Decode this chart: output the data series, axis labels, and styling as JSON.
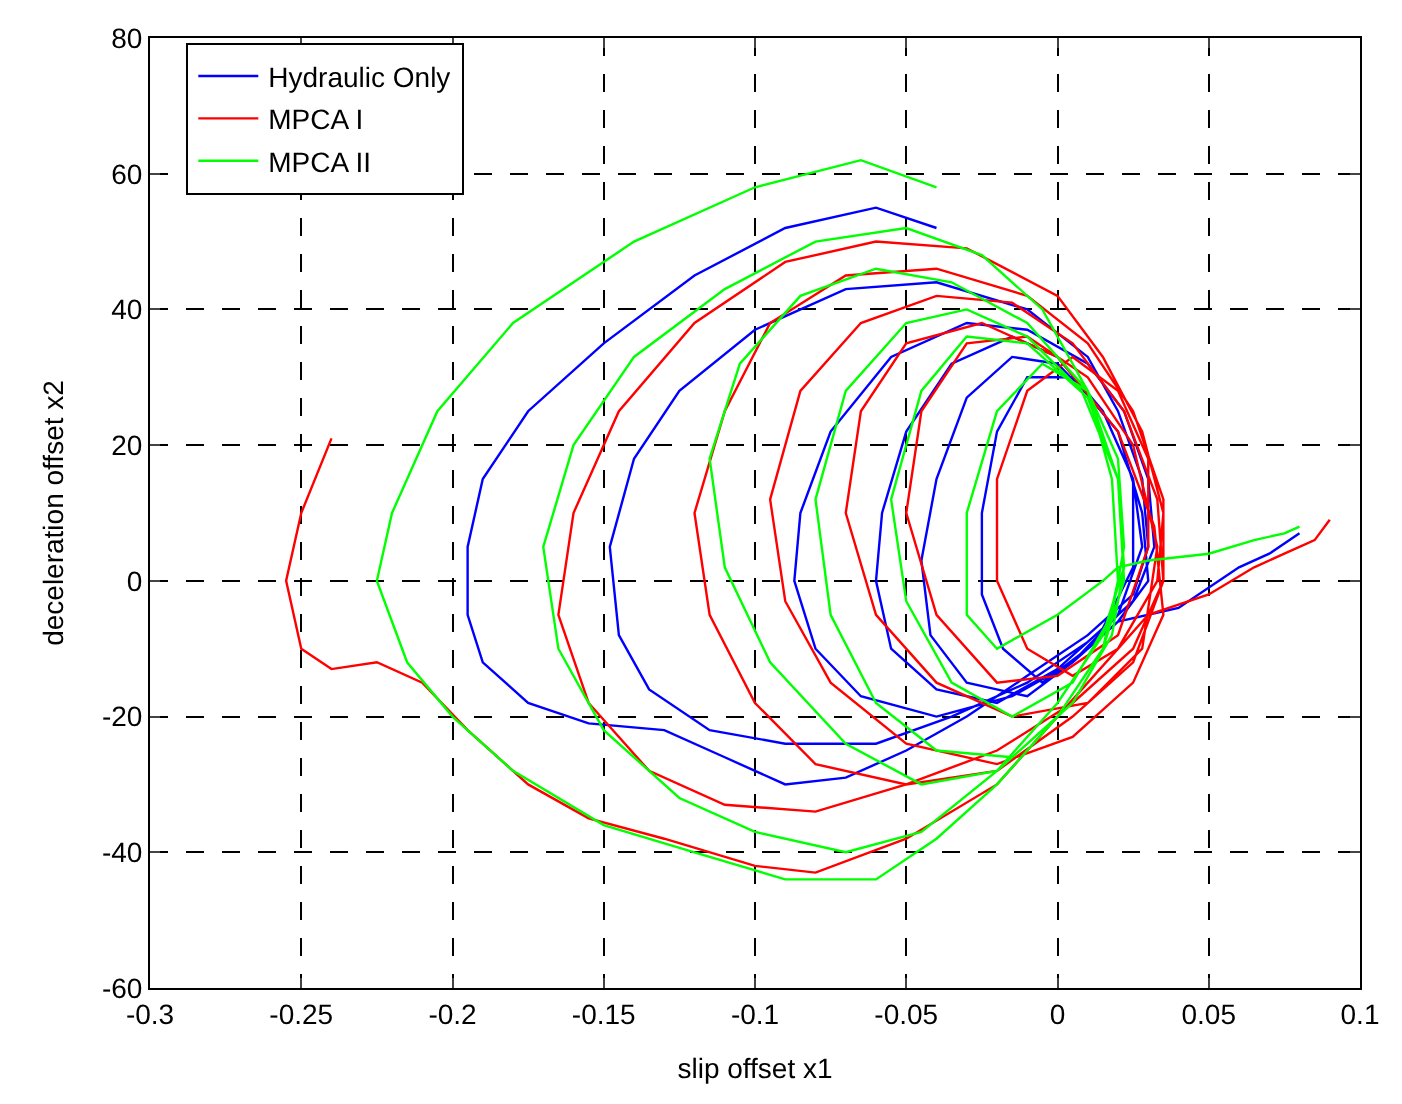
{
  "chart_data": {
    "type": "line",
    "xlabel": "slip offset x1",
    "ylabel": "deceleration offset x2",
    "xlim": [
      -0.3,
      0.1
    ],
    "xticks": [
      -0.3,
      -0.25,
      -0.2,
      -0.15,
      -0.1,
      -0.05,
      0,
      0.05,
      0.1
    ],
    "ylim": [
      -60,
      80
    ],
    "yticks": [
      -60,
      -40,
      -20,
      0,
      20,
      40,
      60,
      80
    ],
    "grid": true,
    "legend": "top left",
    "line_style": "solid",
    "marker": "none",
    "series": [
      {
        "name": "Hydraulic Only",
        "color": "#0000ff",
        "x": [
          -0.04,
          -0.06,
          -0.09,
          -0.12,
          -0.15,
          -0.175,
          -0.19,
          -0.195,
          -0.195,
          -0.19,
          -0.175,
          -0.155,
          -0.13,
          -0.11,
          -0.09,
          -0.07,
          -0.05,
          -0.03,
          -0.01,
          0.01,
          0.025,
          0.03,
          0.028,
          0.02,
          0.01,
          -0.01,
          -0.04,
          -0.07,
          -0.1,
          -0.125,
          -0.14,
          -0.148,
          -0.145,
          -0.135,
          -0.115,
          -0.09,
          -0.06,
          -0.035,
          -0.01,
          0.01,
          0.025,
          0.032,
          0.03,
          0.022,
          0.01,
          -0.01,
          -0.03,
          -0.055,
          -0.075,
          -0.085,
          -0.087,
          -0.08,
          -0.065,
          -0.04,
          -0.015,
          0.005,
          0.02,
          0.028,
          0.025,
          0.015,
          0.0,
          -0.015,
          -0.035,
          -0.05,
          -0.058,
          -0.06,
          -0.055,
          -0.04,
          -0.02,
          0.0,
          0.015,
          0.025,
          0.025,
          0.015,
          0.0,
          -0.015,
          -0.03,
          -0.04,
          -0.045,
          -0.042,
          -0.03,
          -0.01,
          0.005,
          0.02,
          0.03,
          0.028,
          0.02,
          0.005,
          -0.01,
          -0.02,
          -0.025,
          -0.025,
          -0.018,
          -0.005,
          0.01,
          0.02,
          0.04,
          0.06,
          0.07,
          0.08
        ],
        "values": [
          52,
          55,
          52,
          45,
          35,
          25,
          15,
          5,
          -5,
          -12,
          -18,
          -21,
          -22,
          -26,
          -30,
          -29,
          -25,
          -20,
          -14,
          -8,
          -2,
          5,
          15,
          25,
          33,
          40,
          44,
          43,
          37,
          28,
          18,
          5,
          -8,
          -16,
          -22,
          -24,
          -24,
          -20,
          -15,
          -9,
          -3,
          5,
          15,
          25,
          32,
          37,
          38,
          33,
          22,
          10,
          0,
          -10,
          -17,
          -20,
          -17,
          -12,
          -5,
          5,
          15,
          25,
          33,
          36,
          32,
          22,
          10,
          0,
          -10,
          -16,
          -18,
          -13,
          -7,
          2,
          15,
          25,
          32,
          33,
          27,
          15,
          3,
          -8,
          -15,
          -17,
          -12,
          -6,
          0,
          10,
          22,
          30,
          30,
          22,
          10,
          -2,
          -10,
          -15,
          -10,
          -6,
          -4,
          2,
          4,
          7
        ]
      },
      {
        "name": "MPCA I",
        "color": "#ff0000",
        "x": [
          -0.24,
          -0.25,
          -0.255,
          -0.25,
          -0.24,
          -0.225,
          -0.21,
          -0.195,
          -0.175,
          -0.155,
          -0.13,
          -0.1,
          -0.08,
          -0.05,
          -0.02,
          0.0,
          0.02,
          0.033,
          0.035,
          0.028,
          0.015,
          0.0,
          -0.03,
          -0.06,
          -0.09,
          -0.12,
          -0.145,
          -0.16,
          -0.165,
          -0.155,
          -0.135,
          -0.11,
          -0.08,
          -0.05,
          -0.02,
          0.005,
          0.025,
          0.035,
          0.035,
          0.025,
          0.01,
          -0.01,
          -0.04,
          -0.07,
          -0.095,
          -0.11,
          -0.12,
          -0.115,
          -0.1,
          -0.08,
          -0.05,
          -0.02,
          0.005,
          0.025,
          0.035,
          0.033,
          0.022,
          0.005,
          -0.015,
          -0.04,
          -0.065,
          -0.085,
          -0.095,
          -0.09,
          -0.075,
          -0.05,
          -0.02,
          0.005,
          0.025,
          0.035,
          0.032,
          0.02,
          0.0,
          -0.025,
          -0.05,
          -0.065,
          -0.07,
          -0.06,
          -0.04,
          -0.015,
          0.01,
          0.028,
          0.033,
          0.025,
          0.01,
          -0.01,
          -0.03,
          -0.045,
          -0.05,
          -0.04,
          -0.02,
          0.0,
          0.02,
          0.03,
          0.03,
          0.02,
          0.005,
          -0.01,
          -0.02,
          -0.02,
          -0.01,
          0.005,
          0.02,
          0.03,
          0.05,
          0.065,
          0.075,
          0.085,
          0.09
        ],
        "values": [
          21,
          10,
          0,
          -10,
          -13,
          -12,
          -15,
          -22,
          -30,
          -35,
          -38,
          -42,
          -43,
          -38,
          -30,
          -20,
          -10,
          0,
          10,
          22,
          33,
          42,
          49,
          50,
          47,
          38,
          25,
          10,
          -5,
          -18,
          -28,
          -33,
          -34,
          -30,
          -25,
          -18,
          -10,
          0,
          12,
          25,
          35,
          42,
          46,
          45,
          38,
          25,
          10,
          -5,
          -18,
          -27,
          -30,
          -28,
          -20,
          -12,
          0,
          12,
          25,
          35,
          41,
          42,
          38,
          28,
          12,
          -3,
          -15,
          -24,
          -27,
          -23,
          -15,
          -5,
          8,
          22,
          33,
          38,
          35,
          25,
          10,
          -5,
          -15,
          -20,
          -18,
          -10,
          5,
          20,
          30,
          36,
          35,
          25,
          10,
          -5,
          -15,
          -14,
          -8,
          5,
          18,
          28,
          33,
          28,
          15,
          0,
          -10,
          -14,
          -10,
          -5,
          -2,
          2,
          4,
          6,
          9
        ]
      },
      {
        "name": "MPCA II",
        "color": "#00ff00",
        "x": [
          -0.04,
          -0.065,
          -0.1,
          -0.14,
          -0.18,
          -0.205,
          -0.22,
          -0.225,
          -0.215,
          -0.2,
          -0.18,
          -0.15,
          -0.12,
          -0.09,
          -0.06,
          -0.04,
          -0.02,
          0.0,
          0.015,
          0.02,
          0.018,
          0.01,
          -0.005,
          -0.025,
          -0.05,
          -0.08,
          -0.11,
          -0.14,
          -0.16,
          -0.17,
          -0.165,
          -0.15,
          -0.125,
          -0.1,
          -0.07,
          -0.045,
          -0.02,
          0.0,
          0.015,
          0.022,
          0.02,
          0.01,
          -0.01,
          -0.035,
          -0.06,
          -0.085,
          -0.105,
          -0.115,
          -0.11,
          -0.095,
          -0.07,
          -0.045,
          -0.02,
          0.0,
          0.015,
          0.022,
          0.02,
          0.008,
          -0.01,
          -0.03,
          -0.05,
          -0.07,
          -0.08,
          -0.075,
          -0.06,
          -0.04,
          -0.015,
          0.005,
          0.018,
          0.022,
          0.02,
          0.01,
          -0.01,
          -0.03,
          -0.045,
          -0.055,
          -0.05,
          -0.035,
          -0.015,
          0.005,
          0.018,
          0.022,
          0.02,
          0.01,
          -0.005,
          -0.02,
          -0.03,
          -0.03,
          -0.02,
          0.0,
          0.015,
          0.02,
          0.03,
          0.05,
          0.065,
          0.075,
          0.08
        ],
        "values": [
          58,
          62,
          58,
          50,
          38,
          25,
          10,
          0,
          -12,
          -20,
          -28,
          -36,
          -40,
          -44,
          -44,
          -38,
          -30,
          -20,
          -10,
          0,
          15,
          28,
          40,
          48,
          52,
          50,
          43,
          33,
          20,
          5,
          -10,
          -22,
          -32,
          -37,
          -40,
          -37,
          -28,
          -18,
          -8,
          2,
          15,
          28,
          38,
          44,
          46,
          42,
          32,
          18,
          2,
          -12,
          -24,
          -30,
          -28,
          -20,
          -10,
          0,
          15,
          28,
          36,
          40,
          38,
          28,
          12,
          -5,
          -18,
          -25,
          -26,
          -18,
          -8,
          2,
          15,
          27,
          35,
          36,
          28,
          12,
          -3,
          -15,
          -20,
          -15,
          -5,
          5,
          18,
          28,
          32,
          25,
          10,
          -5,
          -10,
          -5,
          0,
          2,
          3,
          4,
          6,
          7,
          8
        ]
      }
    ]
  }
}
